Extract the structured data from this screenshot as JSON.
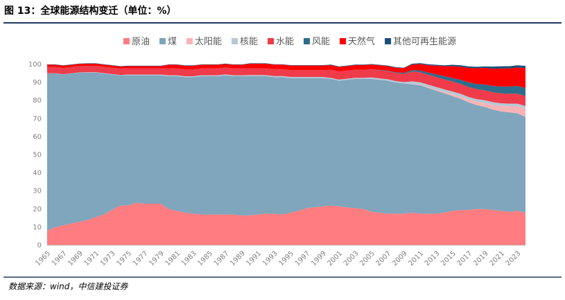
{
  "title": "图 13：全球能源结构变迁（单位：%）",
  "source": "数据来源：wind，中信建投证券",
  "chart_data": {
    "type": "stacked-area",
    "categories": [
      "1965",
      null,
      "1967",
      null,
      "1969",
      null,
      "1971",
      null,
      "1973",
      null,
      "1975",
      null,
      "1977",
      null,
      "1979",
      null,
      "1981",
      null,
      "1983",
      null,
      "1985",
      null,
      "1987",
      null,
      "1989",
      null,
      "1991",
      null,
      "1993",
      null,
      "1995",
      null,
      "1997",
      null,
      "1999",
      null,
      "2001",
      null,
      "2003",
      null,
      "2005",
      null,
      "2007",
      null,
      "2009",
      null,
      "2011",
      null,
      "2013",
      null,
      "2015",
      null,
      "2017",
      null,
      "2019",
      null,
      "2021",
      null,
      "2023",
      null
    ],
    "ylim": [
      0,
      100
    ],
    "yticks": [
      0,
      10,
      20,
      30,
      40,
      50,
      60,
      70,
      80,
      90,
      100
    ],
    "grid": false,
    "series": [
      {
        "name": "原油",
        "color": "#ff7c80",
        "values": [
          8,
          10,
          11,
          12,
          13,
          14,
          15.5,
          17,
          19.5,
          22,
          22,
          23.5,
          23,
          23,
          23,
          20,
          19,
          18,
          17.5,
          17,
          17,
          17,
          17,
          17,
          16.5,
          16.5,
          17,
          17.5,
          17.5,
          17,
          18,
          19,
          20.5,
          21,
          21.5,
          22,
          21.5,
          21,
          20.5,
          20,
          18.5,
          18,
          17.5,
          17.5,
          17.5,
          18,
          17.5,
          17.5,
          17.5,
          18,
          19,
          19.5,
          19.5,
          20,
          20,
          19.5,
          19,
          18.5,
          19,
          18
        ]
      },
      {
        "name": "煤",
        "color": "#7fa6bc",
        "values": [
          87,
          85,
          83.5,
          83,
          82.5,
          81.5,
          80,
          78,
          75,
          72,
          72,
          70.5,
          71,
          71,
          71,
          73.5,
          74.5,
          75,
          75.5,
          76.5,
          76.5,
          76.5,
          77,
          76.5,
          77,
          77,
          76.5,
          76,
          75.5,
          76,
          74.5,
          73.5,
          72,
          71.5,
          71,
          70,
          69.5,
          70.5,
          71.5,
          72,
          73.5,
          73.5,
          73.5,
          72.5,
          72,
          71,
          71,
          69.5,
          68,
          66,
          63.5,
          61.5,
          59.5,
          57.5,
          56.5,
          55.5,
          55,
          55,
          54,
          53
        ]
      },
      {
        "name": "太阳能",
        "color": "#f8b3b7",
        "values": [
          0,
          0,
          0,
          0,
          0,
          0,
          0,
          0,
          0,
          0,
          0,
          0,
          0,
          0,
          0,
          0,
          0,
          0,
          0,
          0,
          0,
          0,
          0,
          0,
          0,
          0,
          0,
          0,
          0,
          0,
          0,
          0,
          0,
          0,
          0,
          0,
          0,
          0,
          0,
          0,
          0,
          0,
          0,
          0,
          0,
          0.1,
          0.2,
          0.3,
          0.5,
          0.7,
          1,
          1.2,
          1.5,
          1.8,
          2.2,
          2.6,
          3,
          3.3,
          3.8,
          4.5
        ]
      },
      {
        "name": "核能",
        "color": "#b7c9d5",
        "values": [
          0.1,
          0.1,
          0.1,
          0.1,
          0.1,
          0.2,
          0.2,
          0.2,
          0.2,
          0.2,
          0.4,
          0.4,
          0.4,
          0.4,
          0.4,
          0.5,
          0.5,
          0.5,
          0.5,
          0.5,
          0.5,
          0.5,
          0.5,
          0.5,
          0.5,
          0.6,
          0.6,
          0.6,
          0.6,
          0.6,
          0.6,
          0.6,
          0.6,
          0.6,
          0.6,
          0.6,
          0.6,
          0.6,
          0.6,
          0.6,
          0.8,
          0.8,
          0.8,
          0.8,
          0.8,
          1.5,
          1.5,
          1.5,
          1.5,
          1.5,
          1.5,
          1.5,
          1.5,
          1.5,
          1.5,
          1.5,
          1.5,
          1.5,
          1.5,
          1.5
        ]
      },
      {
        "name": "水能",
        "color": "#ef3b4a",
        "values": [
          3.5,
          3.5,
          3.5,
          3.5,
          3.5,
          3.5,
          3.5,
          3.5,
          3.5,
          3.5,
          3.5,
          3.5,
          3.5,
          3.5,
          3.5,
          3.8,
          3.8,
          3.8,
          3.8,
          3.8,
          3.8,
          3.8,
          3.8,
          3.8,
          3.8,
          3.8,
          3.8,
          3.8,
          3.8,
          3.8,
          3.8,
          3.8,
          3.8,
          3.8,
          3.8,
          4.5,
          4.5,
          4.5,
          4.5,
          4.5,
          4.5,
          4.5,
          4.5,
          4.5,
          4.5,
          5.5,
          5.5,
          5.5,
          5.5,
          5.5,
          5.5,
          5.5,
          5.5,
          5.5,
          5.5,
          5.5,
          5.5,
          5.5,
          5.5,
          5.5
        ]
      },
      {
        "name": "风能",
        "color": "#2f6d8c",
        "values": [
          0,
          0,
          0,
          0,
          0,
          0,
          0,
          0,
          0,
          0,
          0,
          0,
          0,
          0,
          0,
          0,
          0,
          0,
          0,
          0,
          0,
          0,
          0,
          0,
          0,
          0,
          0,
          0,
          0,
          0,
          0,
          0,
          0,
          0,
          0,
          0,
          0,
          0,
          0,
          0,
          0.1,
          0.2,
          0.3,
          0.4,
          0.6,
          0.8,
          1,
          1.3,
          1.5,
          1.8,
          2,
          2.3,
          2.6,
          2.9,
          3.2,
          3.5,
          3.8,
          4,
          4.3,
          4.5
        ]
      },
      {
        "name": "天然气",
        "color": "#ff0000",
        "values": [
          1.2,
          1.2,
          1.2,
          1.2,
          1.2,
          1.2,
          1.2,
          1.2,
          1.2,
          1.2,
          1.2,
          1.2,
          1.2,
          1.2,
          1.2,
          2,
          2,
          2,
          2,
          2,
          2,
          2,
          2,
          2,
          2,
          2.5,
          2.5,
          2.5,
          2.5,
          2.5,
          2.5,
          2.5,
          2.5,
          2.5,
          2.5,
          2.5,
          2.5,
          2.5,
          2.5,
          2.5,
          2.5,
          2.5,
          2.5,
          2.5,
          2.5,
          3,
          3.5,
          4,
          4.8,
          5.5,
          6.5,
          7.2,
          8,
          8.7,
          9.2,
          9.5,
          10,
          10,
          10.2,
          11
        ]
      },
      {
        "name": "其他可再生能源",
        "color": "#1b4f7a",
        "values": [
          0.2,
          0.2,
          0.2,
          0.2,
          0.2,
          0.2,
          0.2,
          0.2,
          0.2,
          0.2,
          0.2,
          0.2,
          0.2,
          0.2,
          0.2,
          0.2,
          0.2,
          0.2,
          0.2,
          0.2,
          0.2,
          0.2,
          0.2,
          0.2,
          0.2,
          0.2,
          0.2,
          0.2,
          0.2,
          0.2,
          0.2,
          0.2,
          0.2,
          0.2,
          0.2,
          0.3,
          0.3,
          0.3,
          0.3,
          0.3,
          0.3,
          0.3,
          0.3,
          0.3,
          0.3,
          0.5,
          0.5,
          0.5,
          0.5,
          0.5,
          0.8,
          0.8,
          0.8,
          0.8,
          0.8,
          1.2,
          1.2,
          1.2,
          1.2,
          1.2
        ]
      }
    ]
  }
}
